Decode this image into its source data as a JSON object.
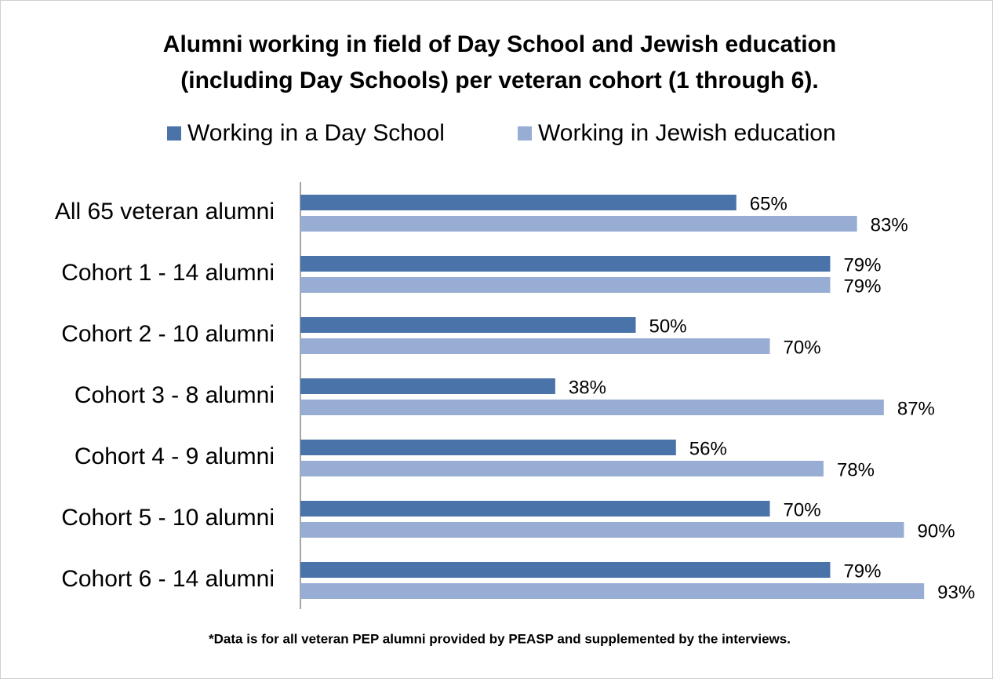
{
  "chart_data": {
    "type": "bar",
    "orientation": "horizontal",
    "title": [
      "Alumni working in field of Day School and Jewish education",
      "(including Day Schools) per veteran cohort (1 through 6)."
    ],
    "categories": [
      "All 65 veteran alumni",
      "Cohort 1 - 14 alumni",
      "Cohort 2 - 10 alumni",
      "Cohort 3 - 8 alumni",
      "Cohort 4 - 9 alumni",
      "Cohort 5 - 10 alumni",
      "Cohort 6 - 14 alumni"
    ],
    "series": [
      {
        "name": "Working in a Day School",
        "color": "#4a73a9",
        "values": [
          65,
          79,
          50,
          38,
          56,
          70,
          79
        ],
        "value_labels": [
          "65%",
          "79%",
          "50%",
          "38%",
          "56%",
          "70%",
          "79%"
        ]
      },
      {
        "name": "Working in Jewish education",
        "color": "#98add4",
        "values": [
          83,
          79,
          70,
          87,
          78,
          90,
          93
        ],
        "value_labels": [
          "83%",
          "79%",
          "70%",
          "87%",
          "78%",
          "90%",
          "93%"
        ]
      }
    ],
    "xlim": [
      0,
      100
    ],
    "legend": "top",
    "note": "*Data is for all veteran PEP alumni provided by PEASP and supplemented by the interviews."
  }
}
